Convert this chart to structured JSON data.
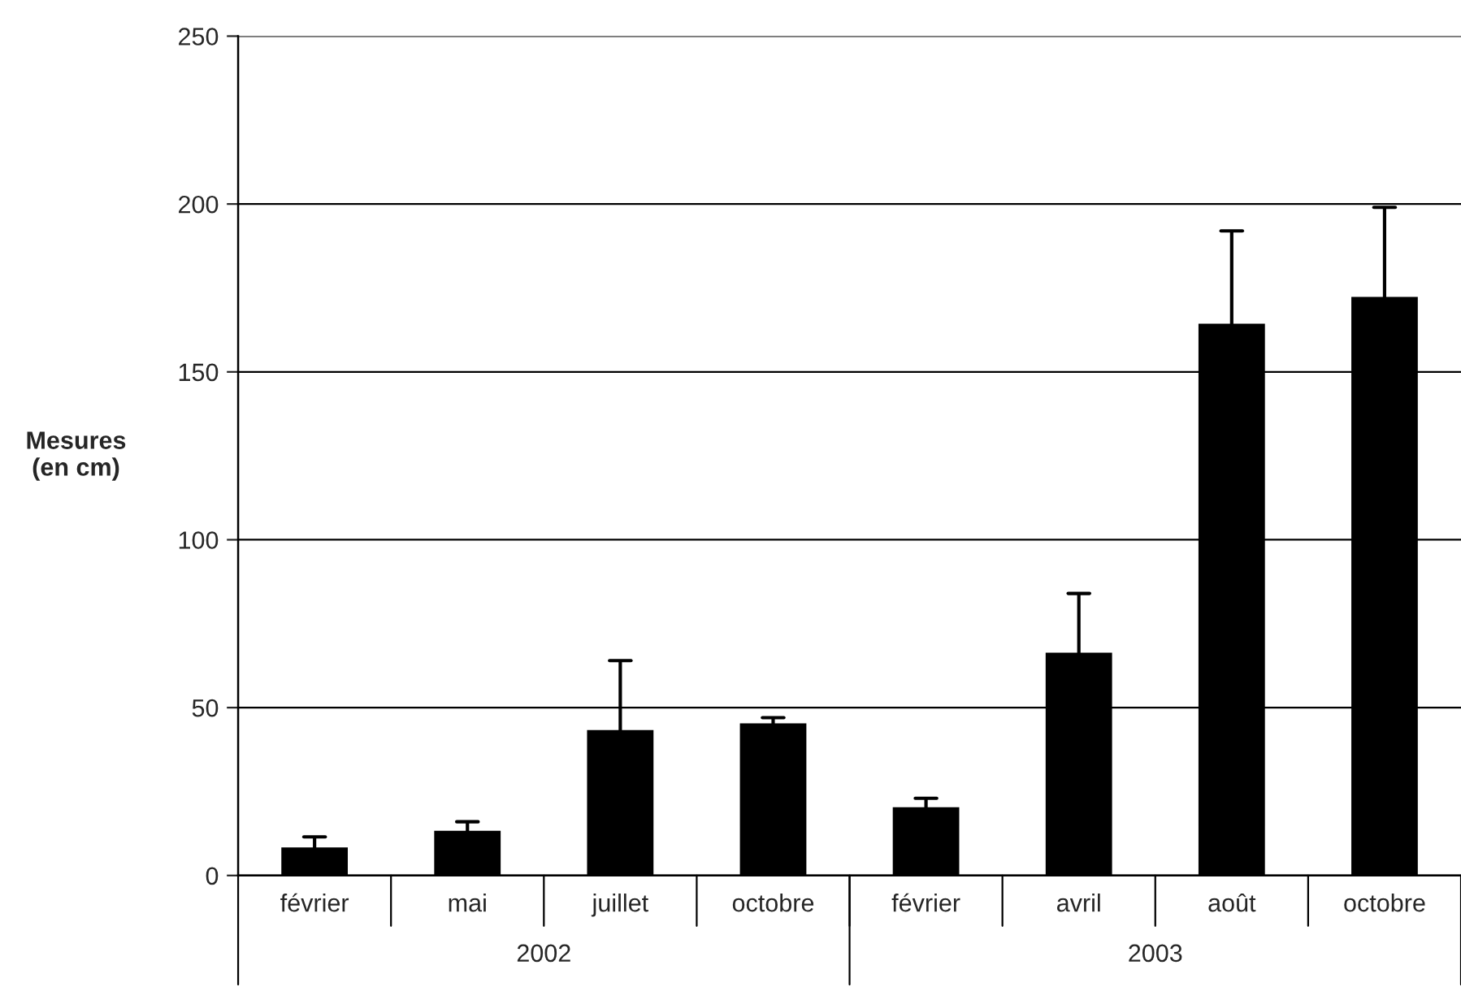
{
  "chart_data": {
    "type": "bar",
    "ylabel": "Mesures\n(en cm)",
    "categories": [
      "février",
      "mai",
      "juillet",
      "octobre",
      "février",
      "avril",
      "août",
      "octobre"
    ],
    "values": [
      8,
      13,
      43,
      45,
      20,
      66,
      164,
      172
    ],
    "errors": [
      [
        8,
        11.5
      ],
      [
        13,
        16
      ],
      [
        43,
        64
      ],
      [
        45,
        47
      ],
      [
        20,
        23
      ],
      [
        66,
        84
      ],
      [
        164,
        192
      ],
      [
        172,
        199
      ]
    ],
    "color": "#000000",
    "ylim": [
      0,
      250
    ],
    "yticks": [
      0,
      50,
      100,
      150,
      200,
      250
    ],
    "grid": "y",
    "annotations": [
      "2002",
      "2003"
    ]
  }
}
